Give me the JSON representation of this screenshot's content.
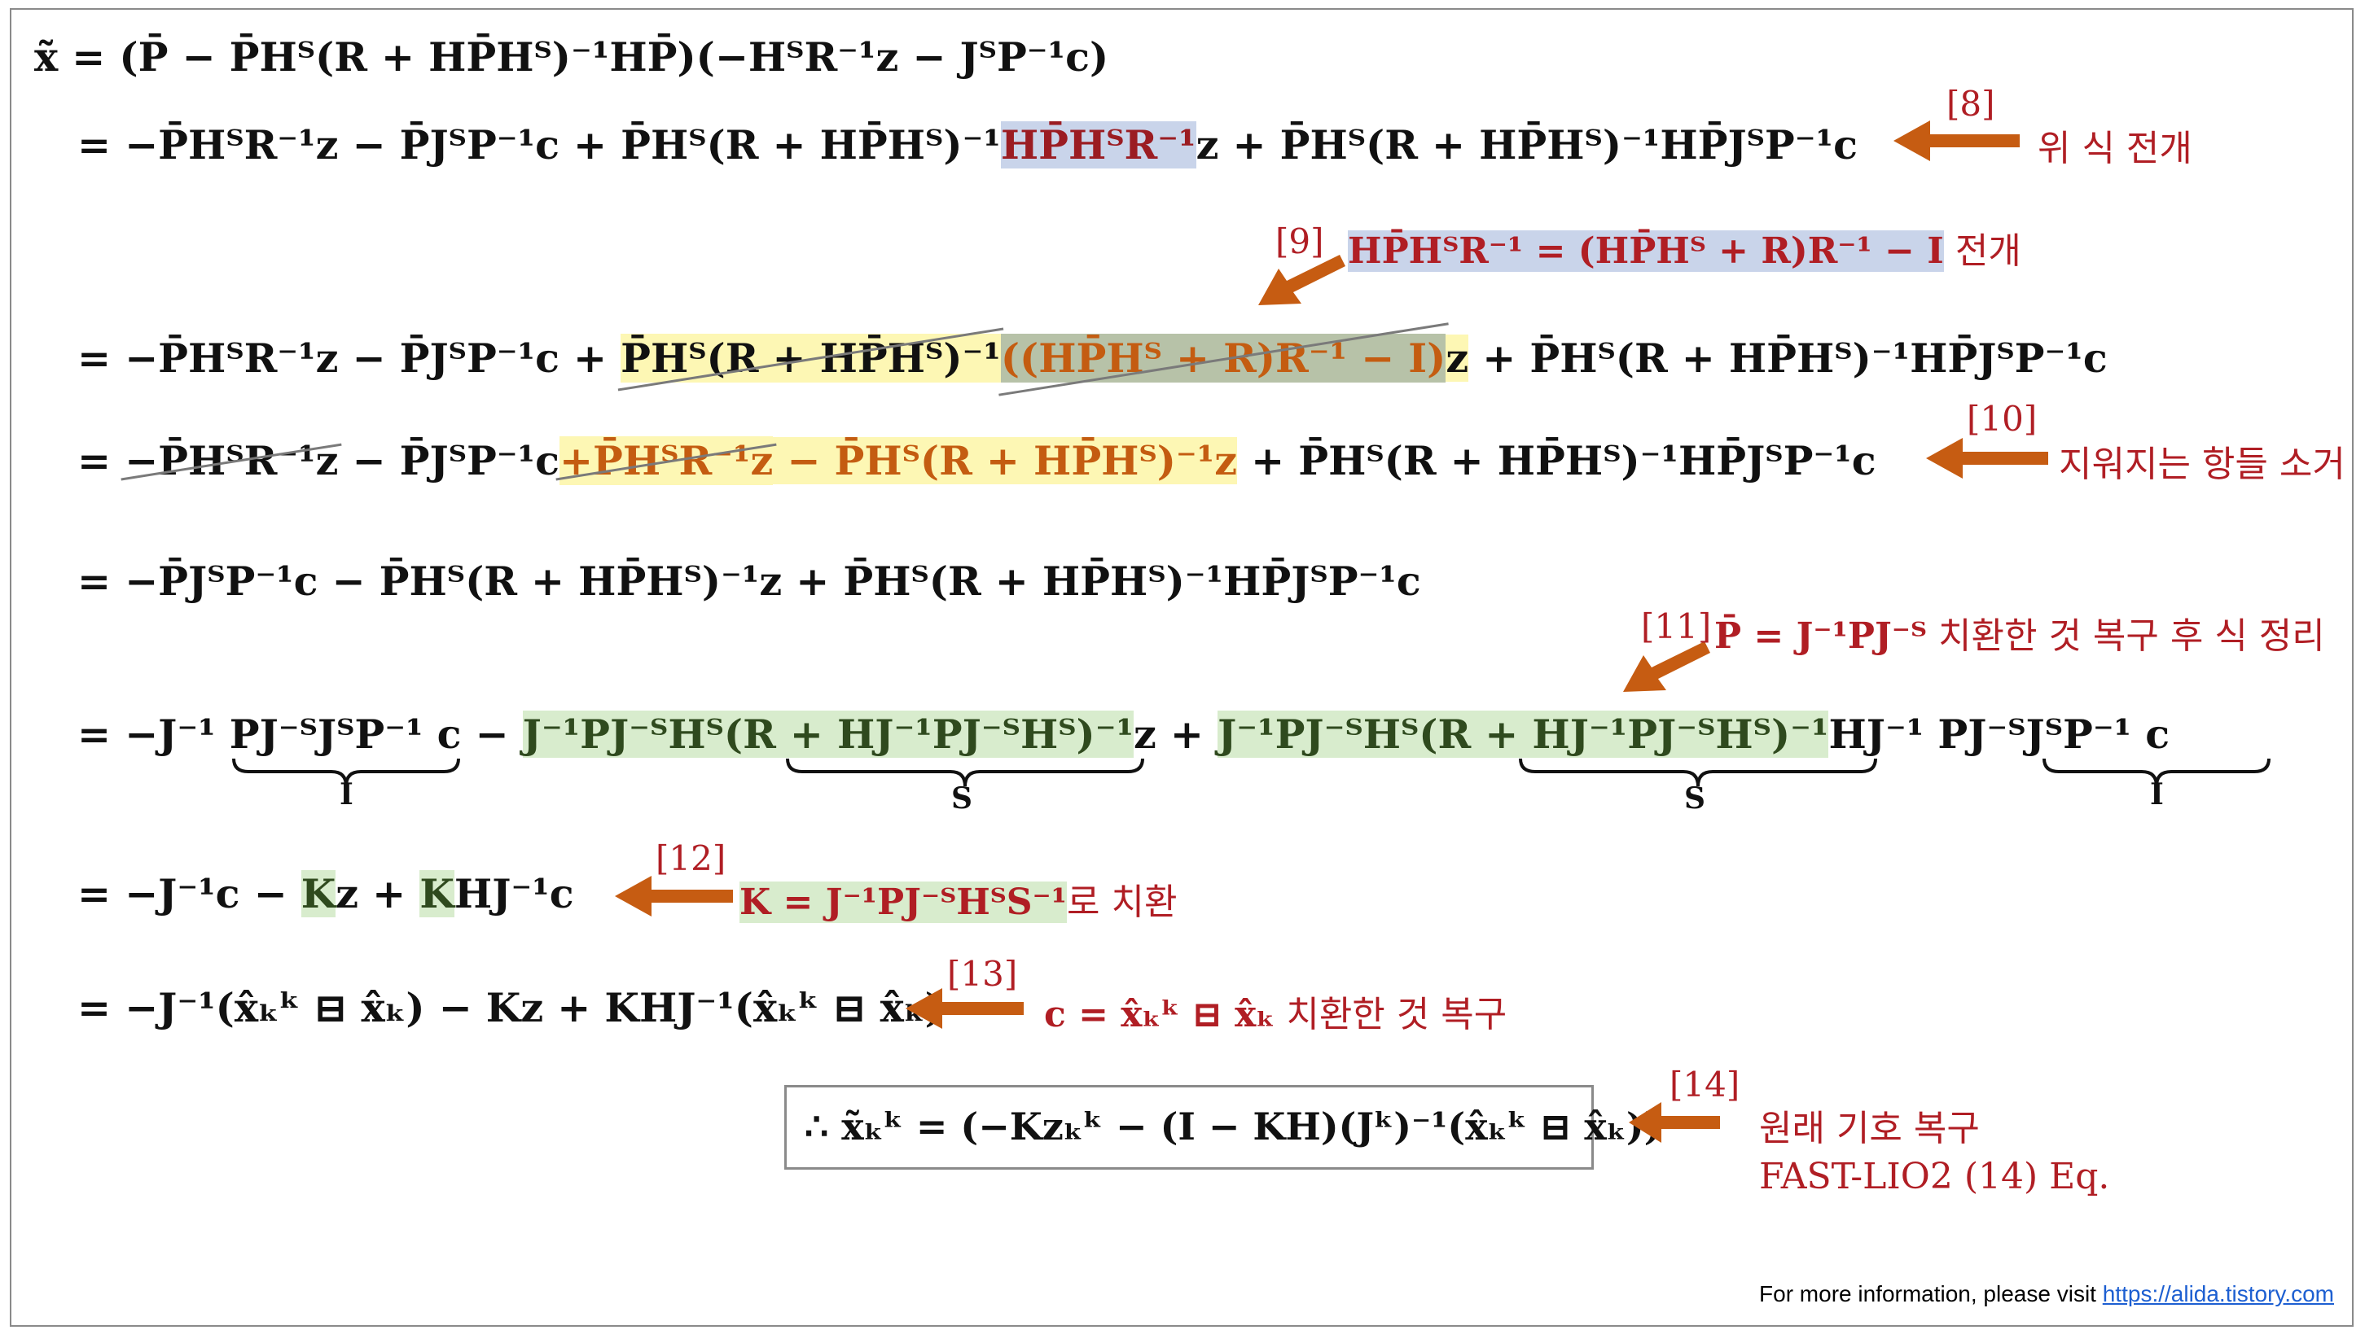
{
  "equations": {
    "l0": "x̃ = (P̄ − P̄Hᵀ(R + HP̄Hᵀ)⁻¹HP̄)(−HᵀR⁻¹z − JᵀP⁻¹c)",
    "l1a": "= −P̄HᵀR⁻¹z − P̄JᵀP⁻¹c + P̄Hᵀ(R + HP̄Hᵀ)⁻¹",
    "l1b": "HP̄HᵀR⁻¹",
    "l1c": "z + P̄Hᵀ(R + HP̄Hᵀ)⁻¹HP̄JᵀP⁻¹c",
    "l2a": "= −P̄HᵀR⁻¹z − P̄JᵀP⁻¹c + ",
    "l2b": "P̄Hᵀ(R + HP̄Hᵀ)⁻¹",
    "l2c": "((HP̄Hᵀ + R)R⁻¹ − I)",
    "l2d": "z",
    "l2e": " + P̄Hᵀ(R + HP̄Hᵀ)⁻¹HP̄JᵀP⁻¹c",
    "l3a": "= ",
    "l3b": "−P̄HᵀR⁻¹z",
    "l3c": " − P̄JᵀP⁻¹c",
    "l3d": "+P̄HᵀR⁻¹z",
    "l3e": " − P̄Hᵀ(R + HP̄Hᵀ)⁻¹z",
    "l3f": " + P̄Hᵀ(R + HP̄Hᵀ)⁻¹HP̄JᵀP⁻¹c",
    "l4": "= −P̄JᵀP⁻¹c − P̄Hᵀ(R + HP̄Hᵀ)⁻¹z + P̄Hᵀ(R + HP̄Hᵀ)⁻¹HP̄JᵀP⁻¹c",
    "l5a": "= −J⁻¹ ",
    "l5b": "PJ⁻ᵀJᵀP⁻¹",
    "l5c": " c − ",
    "l5d": "J⁻¹PJ⁻ᵀHᵀ(",
    "l5e": "R + HJ⁻¹PJ⁻ᵀHᵀ",
    "l5f": ")⁻¹",
    "l5g": "z + ",
    "l5h": "J⁻¹PJ⁻ᵀHᵀ(",
    "l5i": "R + HJ⁻¹PJ⁻ᵀHᵀ",
    "l5j": ")⁻¹",
    "l5k": "HJ⁻¹ ",
    "l5l": "PJ⁻ᵀJᵀP⁻¹",
    "l5m": " c",
    "l6a": "= −J⁻¹c − ",
    "l6b": "K",
    "l6c": "z + ",
    "l6d": "K",
    "l6e": "HJ⁻¹c",
    "l7": "= −J⁻¹(x̂ₖᵏ ⊟ x̂ₖ) − Kz + KHJ⁻¹(x̂ₖᵏ ⊟ x̂ₖ)",
    "boxed": "∴ x̃ₖᵏ = (−Kzₖᵏ − (I − KH)(Jᵏ)⁻¹(x̂ₖᵏ ⊟ x̂ₖ))"
  },
  "braces": {
    "b1": "I",
    "b2": "S",
    "b3": "S",
    "b4": "I"
  },
  "annotations": {
    "ref8": "[8]",
    "note8": "위 식 전개",
    "ref9": "[9]",
    "note9_formula": "HP̄HᵀR⁻¹ = (HP̄Hᵀ + R)R⁻¹ − I",
    "note9_text": " 전개",
    "ref10": "[10]",
    "note10": "지워지는 항들 소거",
    "ref11": "[11]",
    "note11_formula": "P̄ = J⁻¹PJ⁻ᵀ",
    "note11_text": " 치환한 것 복구 후 식 정리",
    "ref12": "[12]",
    "note12_formula": "K = J⁻¹PJ⁻ᵀHᵀS⁻¹",
    "note12_text": "로 치환",
    "ref13": "[13]",
    "note13_formula": "c = x̂ₖᵏ ⊟ x̂ₖ",
    "note13_text": "  치환한 것 복구",
    "ref14": "[14]",
    "note14": "원래 기호 복구",
    "note14b": "FAST-LIO2 (14) Eq."
  },
  "footer": {
    "text": "For more information, please visit ",
    "link": "https://alida.tistory.com"
  },
  "colors": {
    "annotation": "#b01e24",
    "arrow": "#c65c12",
    "highlight_blue": "#c9d4ea",
    "highlight_yellow": "#fdf7b4",
    "highlight_green": "#d8eccd"
  }
}
